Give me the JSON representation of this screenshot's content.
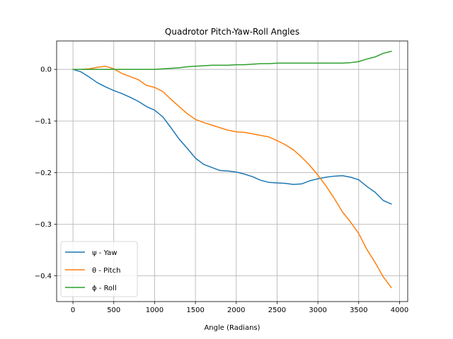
{
  "chart_data": {
    "type": "line",
    "title": "Quadrotor Pitch-Yaw-Roll Angles",
    "xlabel": "Angle (Radians)",
    "ylabel": "",
    "xlim": [
      -200,
      4100
    ],
    "ylim": [
      -0.45,
      0.055
    ],
    "xticks": [
      0,
      500,
      1000,
      1500,
      2000,
      2500,
      3000,
      3500,
      4000
    ],
    "xtick_labels": [
      "0",
      "500",
      "1000",
      "1500",
      "2000",
      "2500",
      "3000",
      "3500",
      "4000"
    ],
    "yticks": [
      0.0,
      -0.1,
      -0.2,
      -0.3,
      -0.4
    ],
    "ytick_labels": [
      "0.0",
      "−0.1",
      "−0.2",
      "−0.3",
      "−0.4"
    ],
    "grid": true,
    "legend_position": "lower-left",
    "series": [
      {
        "name": "ψ - Yaw",
        "color": "#1f77b4",
        "x": [
          0,
          100,
          200,
          300,
          400,
          500,
          600,
          700,
          800,
          900,
          1000,
          1100,
          1200,
          1300,
          1400,
          1500,
          1600,
          1700,
          1800,
          1900,
          2000,
          2100,
          2200,
          2300,
          2400,
          2500,
          2600,
          2700,
          2800,
          2900,
          3000,
          3100,
          3200,
          3300,
          3400,
          3500,
          3600,
          3700,
          3800,
          3900
        ],
        "y": [
          0.0,
          -0.005,
          -0.015,
          -0.026,
          -0.034,
          -0.041,
          -0.047,
          -0.054,
          -0.062,
          -0.072,
          -0.079,
          -0.092,
          -0.113,
          -0.135,
          -0.153,
          -0.172,
          -0.184,
          -0.19,
          -0.196,
          -0.197,
          -0.199,
          -0.203,
          -0.208,
          -0.215,
          -0.219,
          -0.22,
          -0.221,
          -0.223,
          -0.222,
          -0.216,
          -0.212,
          -0.209,
          -0.207,
          -0.206,
          -0.209,
          -0.214,
          -0.227,
          -0.238,
          -0.254,
          -0.261
        ]
      },
      {
        "name": "θ - Pitch",
        "color": "#ff7f0e",
        "x": [
          0,
          100,
          200,
          300,
          400,
          500,
          600,
          700,
          800,
          900,
          1000,
          1100,
          1200,
          1300,
          1400,
          1500,
          1600,
          1700,
          1800,
          1900,
          2000,
          2100,
          2200,
          2300,
          2400,
          2500,
          2600,
          2700,
          2800,
          2900,
          3000,
          3100,
          3200,
          3300,
          3400,
          3500,
          3600,
          3700,
          3800,
          3900
        ],
        "y": [
          0.0,
          0.0,
          0.001,
          0.004,
          0.006,
          0.001,
          -0.008,
          -0.014,
          -0.02,
          -0.031,
          -0.035,
          -0.043,
          -0.058,
          -0.072,
          -0.086,
          -0.097,
          -0.103,
          -0.108,
          -0.113,
          -0.118,
          -0.121,
          -0.122,
          -0.125,
          -0.128,
          -0.131,
          -0.138,
          -0.146,
          -0.156,
          -0.17,
          -0.186,
          -0.205,
          -0.226,
          -0.25,
          -0.276,
          -0.296,
          -0.318,
          -0.349,
          -0.374,
          -0.402,
          -0.423
        ]
      },
      {
        "name": "ϕ - Roll",
        "color": "#2ca02c",
        "x": [
          0,
          100,
          200,
          300,
          400,
          500,
          600,
          700,
          800,
          900,
          1000,
          1100,
          1200,
          1300,
          1400,
          1500,
          1600,
          1700,
          1800,
          1900,
          2000,
          2100,
          2200,
          2300,
          2400,
          2500,
          2600,
          2700,
          2800,
          2900,
          3000,
          3100,
          3200,
          3300,
          3400,
          3500,
          3600,
          3700,
          3800,
          3900
        ],
        "y": [
          0.0,
          0.0,
          0.0,
          0.0,
          0.0,
          0.0,
          0.0,
          0.0,
          0.0,
          0.0,
          0.0,
          0.001,
          0.002,
          0.003,
          0.005,
          0.006,
          0.007,
          0.008,
          0.008,
          0.008,
          0.009,
          0.009,
          0.01,
          0.011,
          0.011,
          0.012,
          0.012,
          0.012,
          0.012,
          0.012,
          0.012,
          0.012,
          0.012,
          0.012,
          0.013,
          0.015,
          0.02,
          0.024,
          0.031,
          0.035
        ]
      }
    ]
  }
}
